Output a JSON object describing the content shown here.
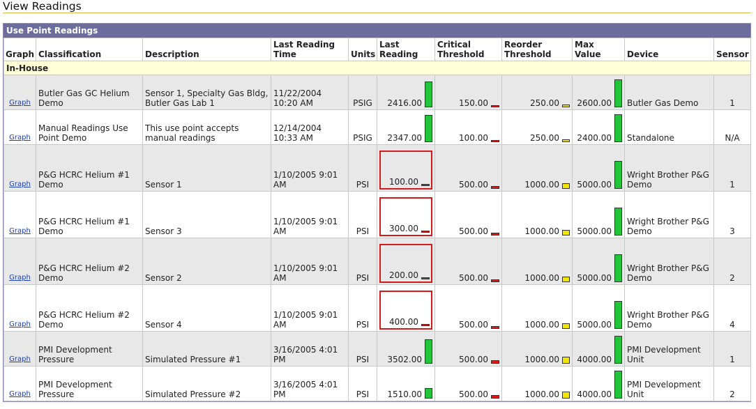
{
  "header": {
    "title": "View Readings"
  },
  "panel": {
    "title": "Use Point Readings"
  },
  "table": {
    "columns": [
      "Graph",
      "Classification",
      "Description",
      "Last Reading Time",
      "Units",
      "Last Reading",
      "Critical Threshold",
      "Reorder Threshold",
      "Max Value",
      "Device",
      "Sensor"
    ],
    "groups": [
      {
        "label": "In-House",
        "rows": [
          [
            "Graph",
            "Butler Gas GC Helium Demo",
            "Sensor 1, Specialty Gas Bldg, Butler Gas Lab 1",
            "11/22/2004 10:20 AM",
            "PSIG",
            "2416.00",
            "150.00",
            "250.00",
            "2600.00",
            "Butler Gas Demo",
            "1"
          ],
          [
            "Graph",
            "Manual Readings Use Point Demo",
            "This use point accepts manual readings",
            "12/14/2004 10:33 AM",
            "PSIG",
            "2347.00",
            "100.00",
            "250.00",
            "2400.00",
            "Standalone",
            "N/A"
          ],
          [
            "Graph",
            "P&G HCRC Helium #1 Demo",
            "Sensor 1",
            "1/10/2005 9:01 AM",
            "PSI",
            "100.00",
            "500.00",
            "1000.00",
            "5000.00",
            "Wright Brother P&G Demo",
            "1"
          ],
          [
            "Graph",
            "P&G HCRC Helium #1 Demo",
            "Sensor 3",
            "1/10/2005 9:01 AM",
            "PSI",
            "300.00",
            "500.00",
            "1000.00",
            "5000.00",
            "Wright Brother P&G Demo",
            "3"
          ],
          [
            "Graph",
            "P&G HCRC Helium #2 Demo",
            "Sensor 2",
            "1/10/2005 9:01 AM",
            "PSI",
            "200.00",
            "500.00",
            "1000.00",
            "5000.00",
            "Wright Brother P&G Demo",
            "2"
          ],
          [
            "Graph",
            "P&G HCRC Helium #2 Demo",
            "Sensor 4",
            "1/10/2005 9:01 AM",
            "PSI",
            "400.00",
            "500.00",
            "1000.00",
            "5000.00",
            "Wright Brother P&G Demo",
            "4"
          ],
          [
            "Graph",
            "PMI Development Pressure",
            "Simulated Pressure #1",
            "3/16/2005 4:01 PM",
            "PSI",
            "3502.00",
            "500.00",
            "1000.00",
            "4000.00",
            "PMI Development Unit",
            "1"
          ],
          [
            "Graph",
            "PMI Development Pressure",
            "Simulated Pressure #2",
            "3/16/2005 4:01 PM",
            "PSI",
            "1510.00",
            "500.00",
            "1000.00",
            "4000.00",
            "PMI Development Unit",
            "2"
          ]
        ]
      }
    ]
  }
}
